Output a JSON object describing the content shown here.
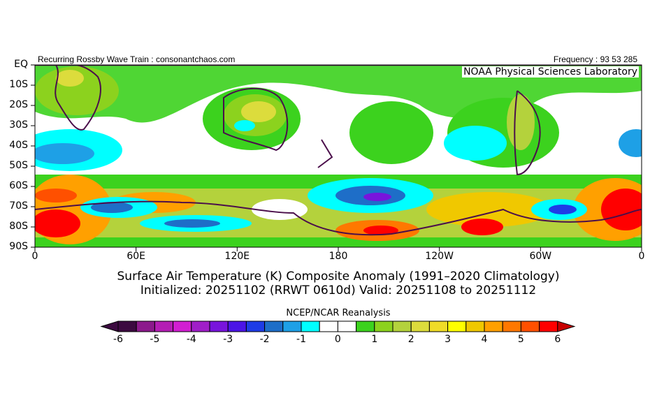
{
  "header": {
    "left_label": "Recurring Rossby Wave Train : consonantchaos.com",
    "right_label": "Frequency : 93 53 285",
    "lab_label": "NOAA Physical Sciences Laboratory"
  },
  "map": {
    "lat_ticks": [
      "EQ",
      "10S",
      "20S",
      "30S",
      "40S",
      "50S",
      "60S",
      "70S",
      "80S",
      "90S"
    ],
    "lon_ticks": [
      "0",
      "60E",
      "120E",
      "180",
      "120W",
      "60W",
      "0"
    ]
  },
  "title": {
    "line1": "Surface Air Temperature (K) Composite Anomaly (1991–2020 Climatology)",
    "line2": "Initialized: 20251102 (RRWT 0610d) Valid: 20251108 to 20251112"
  },
  "colorbar": {
    "title": "NCEP/NCAR Reanalysis",
    "labels": [
      "-6",
      "-5",
      "-4",
      "-3",
      "-2",
      "-1",
      "0",
      "1",
      "2",
      "3",
      "4",
      "5",
      "6"
    ],
    "colors": [
      "#3c0a40",
      "#8c1a8c",
      "#b41eb4",
      "#d21ed2",
      "#a01ec8",
      "#7814dc",
      "#4b14e6",
      "#1e3ce6",
      "#1e6ec8",
      "#1ea0e6",
      "#00ffff",
      "#ffffff",
      "#ffffff",
      "#3cd21e",
      "#8cd21e",
      "#b4d23c",
      "#dcdc3c",
      "#f0dc28",
      "#ffff00",
      "#f0c800",
      "#ffa000",
      "#ff7800",
      "#ff5000",
      "#ff0000"
    ],
    "low_end": "#3c0a40",
    "high_end": "#c80000"
  }
}
